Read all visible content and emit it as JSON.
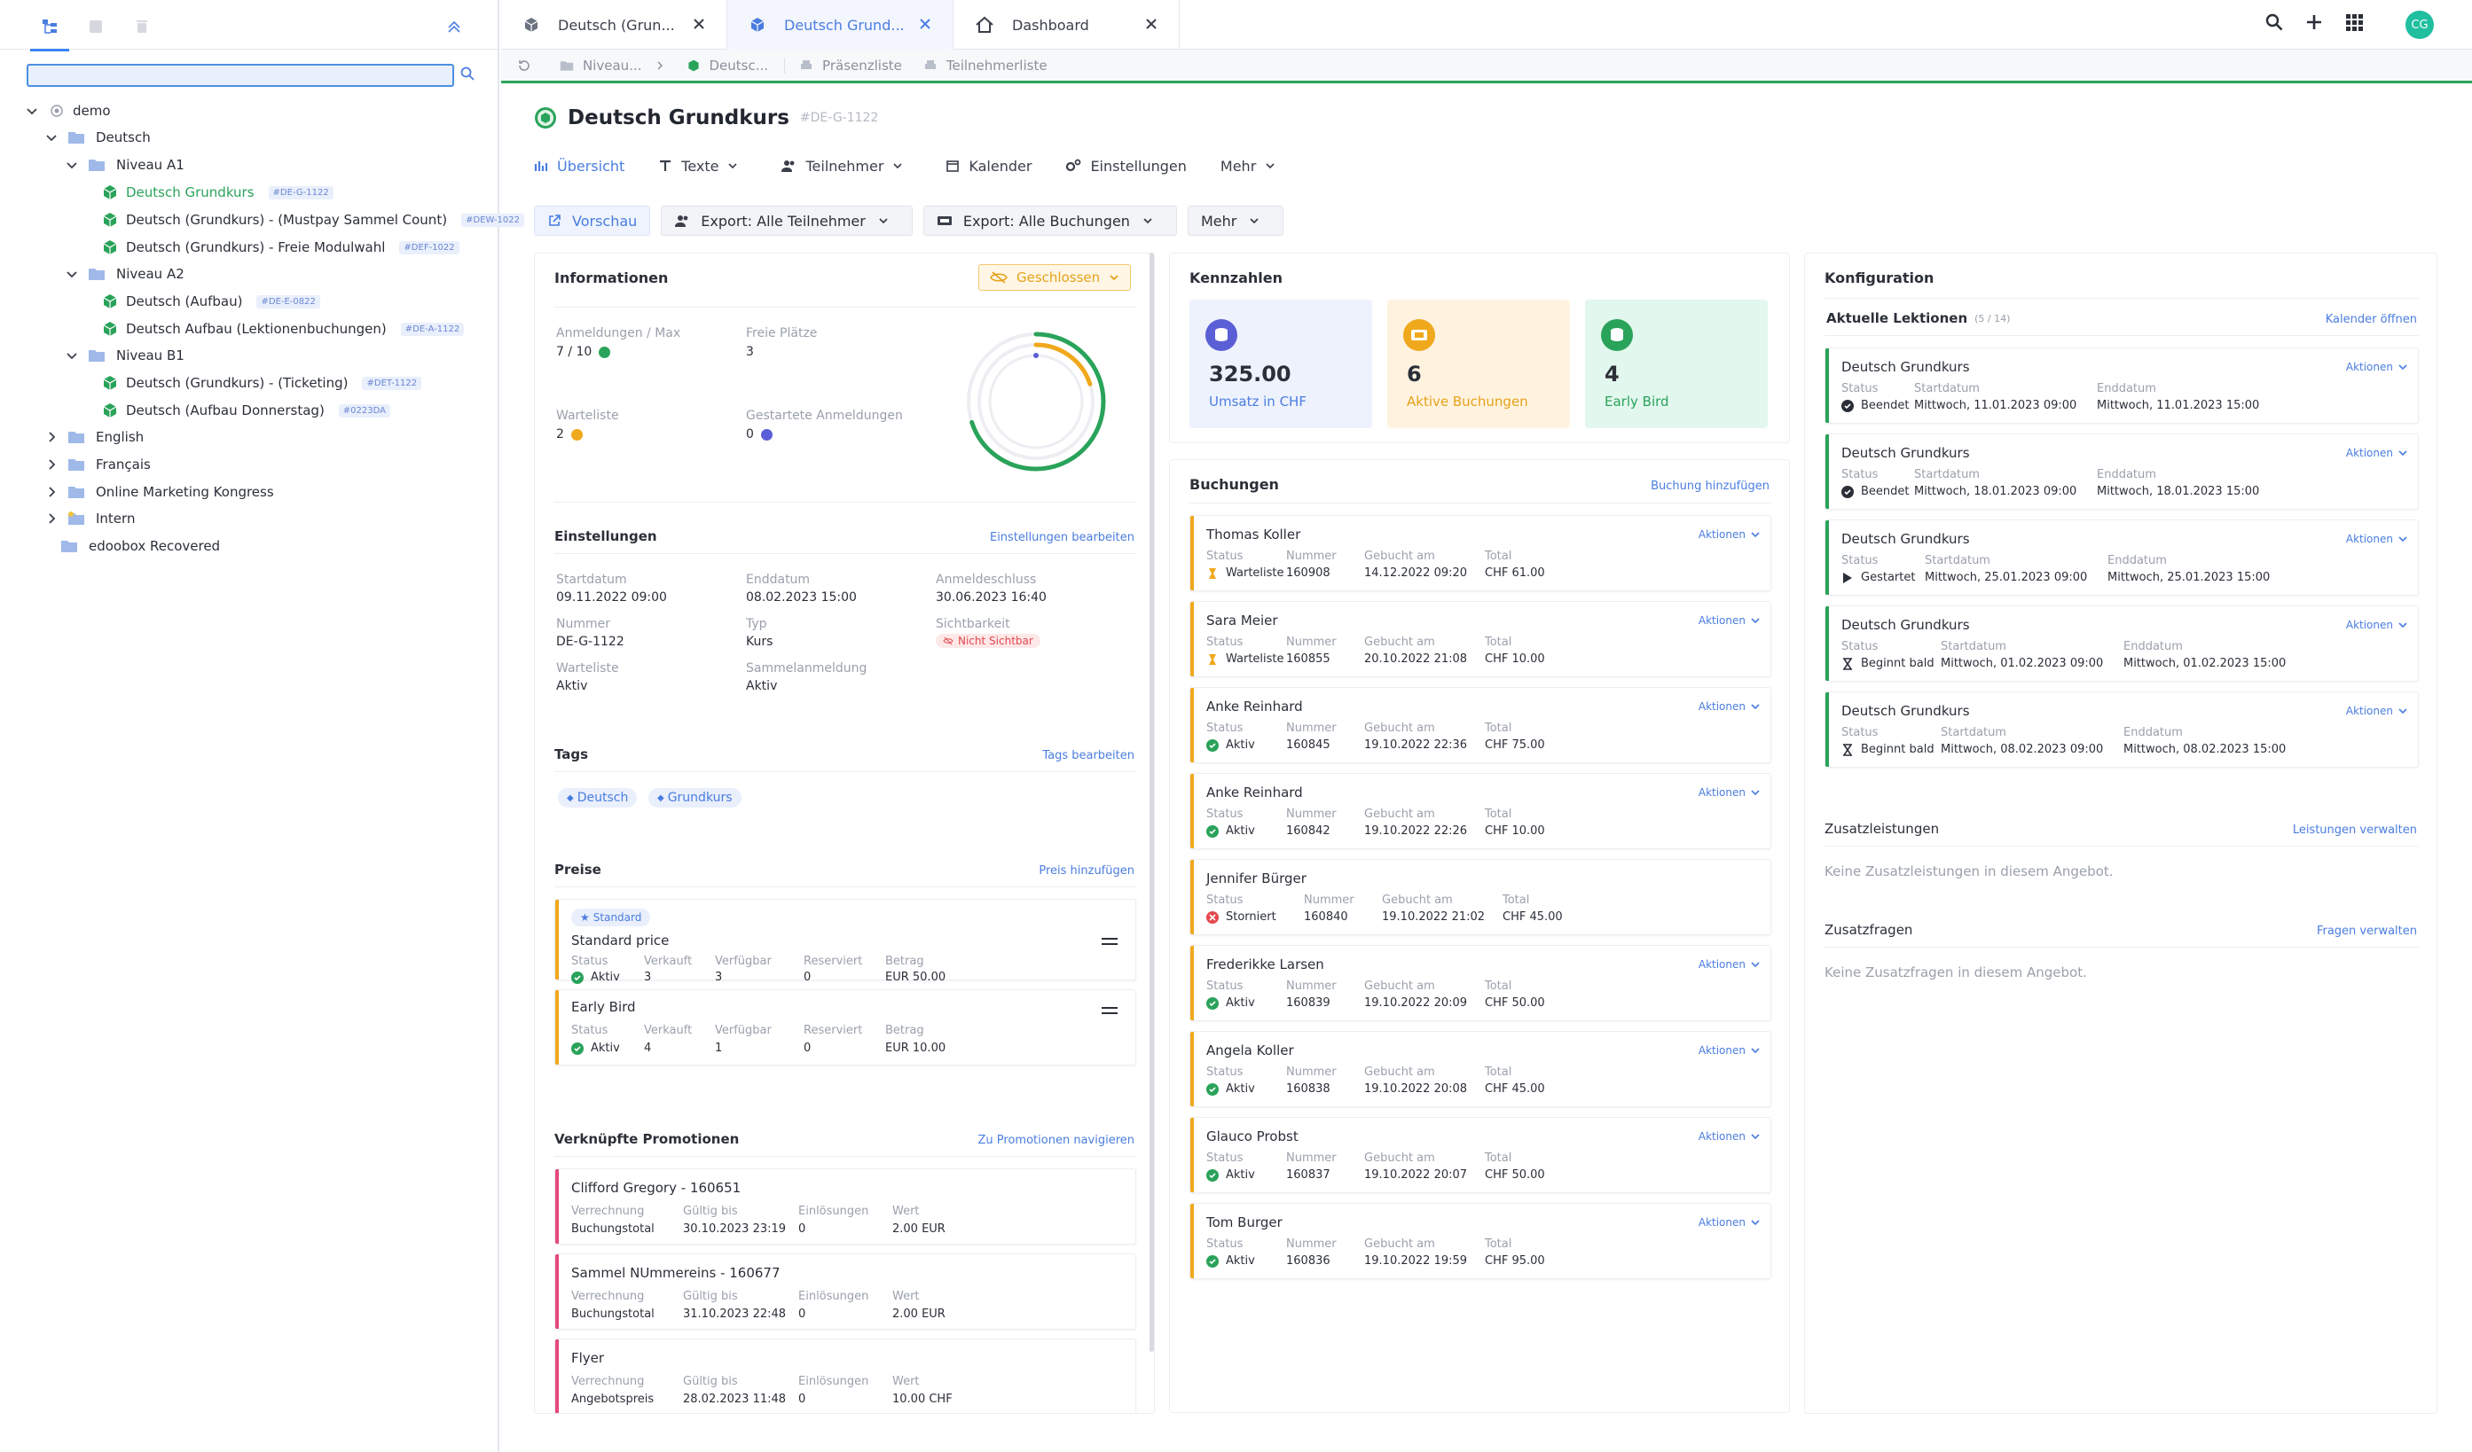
{
  "sidebar": {
    "search": {
      "value": "",
      "placeholder": ""
    },
    "tree": {
      "demo": "demo",
      "deutsch": "Deutsch",
      "niveau_a1": "Niveau A1",
      "a1_items": [
        {
          "label": "Deutsch Grundkurs",
          "tag": "#DE-G-1122"
        },
        {
          "label": "Deutsch (Grundkurs) - (Mustpay Sammel Count)",
          "tag": "#DEW-1022"
        },
        {
          "label": "Deutsch (Grundkurs) - Freie Modulwahl",
          "tag": "#DEF-1022"
        }
      ],
      "niveau_a2": "Niveau A2",
      "a2_items": [
        {
          "label": "Deutsch (Aufbau)",
          "tag": "#DE-E-0822"
        },
        {
          "label": "Deutsch Aufbau (Lektionenbuchungen)",
          "tag": "#DE-A-1122"
        }
      ],
      "niveau_b1": "Niveau B1",
      "b1_items": [
        {
          "label": "Deutsch (Grundkurs) - (Ticketing)",
          "tag": "#DET-1122"
        },
        {
          "label": "Deutsch (Aufbau Donnerstag)",
          "tag": "#0223DA"
        }
      ],
      "english": "English",
      "francais": "Français",
      "online_marketing": "Online Marketing Kongress",
      "intern": "Intern",
      "recovered": "edoobox Recovered"
    }
  },
  "tabs": [
    {
      "label": "Deutsch (Grun..."
    },
    {
      "label": "Deutsch Grund..."
    },
    {
      "label": "Dashboard"
    }
  ],
  "topbar": {
    "avatar": "CG"
  },
  "breadcrumb": {
    "items": [
      "Niveau...",
      "Deutsc..."
    ],
    "print1": "Präsenzliste",
    "print2": "Teilnehmerliste"
  },
  "page": {
    "title": "Deutsch Grundkurs",
    "tag": "#DE-G-1122"
  },
  "nav": {
    "uebersicht": "Übersicht",
    "texte": "Texte",
    "teilnehmer": "Teilnehmer",
    "kalender": "Kalender",
    "einstellungen": "Einstellungen",
    "mehr": "Mehr"
  },
  "actions": {
    "vorschau": "Vorschau",
    "export_teilnehmer": "Export: Alle Teilnehmer",
    "export_buchungen": "Export: Alle Buchungen",
    "mehr": "Mehr"
  },
  "info": {
    "heading": "Informationen",
    "status": "Geschlossen",
    "anmeldungen_label": "Anmeldungen / Max",
    "anmeldungen_value": "7 / 10",
    "freie_label": "Freie Plätze",
    "freie_value": "3",
    "warteliste_label": "Warteliste",
    "warteliste_value": "2",
    "gestartete_label": "Gestartete Anmeldungen",
    "gestartete_value": "0",
    "ring": {
      "registered_fraction": 0.7,
      "waitlist_fraction": 0.2
    }
  },
  "settings": {
    "heading": "Einstellungen",
    "edit": "Einstellungen bearbeiten",
    "startdatum_label": "Startdatum",
    "startdatum": "09.11.2022 09:00",
    "enddatum_label": "Enddatum",
    "enddatum": "08.02.2023 15:00",
    "anmeldeschluss_label": "Anmeldeschluss",
    "anmeldeschluss": "30.06.2023 16:40",
    "nummer_label": "Nummer",
    "nummer": "DE-G-1122",
    "typ_label": "Typ",
    "typ": "Kurs",
    "sicht_label": "Sichtbarkeit",
    "sicht": "Nicht Sichtbar",
    "warteliste_label": "Warteliste",
    "warteliste": "Aktiv",
    "sammel_label": "Sammelanmeldung",
    "sammel": "Aktiv"
  },
  "tags": {
    "heading": "Tags",
    "edit": "Tags bearbeiten",
    "items": [
      "Deutsch",
      "Grundkurs"
    ]
  },
  "preise": {
    "heading": "Preise",
    "add": "Preis hinzufügen",
    "standard_badge": "Standard",
    "labels": {
      "status": "Status",
      "verkauft": "Verkauft",
      "verfuegbar": "Verfügbar",
      "reserviert": "Reserviert",
      "betrag": "Betrag"
    },
    "items": [
      {
        "name": "Standard price",
        "status": "Aktiv",
        "verkauft": "3",
        "verfuegbar": "3",
        "reserviert": "0",
        "betrag": "EUR 50.00"
      },
      {
        "name": "Early Bird",
        "status": "Aktiv",
        "verkauft": "4",
        "verfuegbar": "1",
        "reserviert": "0",
        "betrag": "EUR 10.00"
      }
    ]
  },
  "promotionen": {
    "heading": "Verknüpfte Promotionen",
    "link": "Zu Promotionen navigieren",
    "labels": {
      "verrechnung": "Verrechnung",
      "gueltig": "Gültig bis",
      "einloesungen": "Einlösungen",
      "wert": "Wert"
    },
    "items": [
      {
        "name": "Clifford Gregory - 160651",
        "verrechnung": "Buchungstotal",
        "gueltig": "30.10.2023 23:19",
        "einloesungen": "0",
        "wert": "2.00 EUR"
      },
      {
        "name": "Sammel NUmmereins - 160677",
        "verrechnung": "Buchungstotal",
        "gueltig": "31.10.2023 22:48",
        "einloesungen": "0",
        "wert": "2.00 EUR"
      },
      {
        "name": "Flyer",
        "verrechnung": "Angebotspreis",
        "gueltig": "28.02.2023 11:48",
        "einloesungen": "0",
        "wert": "10.00 CHF"
      }
    ]
  },
  "kennzahlen": {
    "heading": "Kennzahlen",
    "items": [
      {
        "value": "325.00",
        "label": "Umsatz in CHF"
      },
      {
        "value": "6",
        "label": "Aktive Buchungen"
      },
      {
        "value": "4",
        "label": "Early Bird"
      }
    ]
  },
  "buchungen": {
    "heading": "Buchungen",
    "add": "Buchung hinzufügen",
    "aktionen": "Aktionen",
    "labels": {
      "status": "Status",
      "nummer": "Nummer",
      "gebucht": "Gebucht am",
      "total": "Total"
    },
    "items": [
      {
        "name": "Thomas Koller",
        "status": "Warteliste",
        "nummer": "160908",
        "gebucht": "14.12.2022 09:20",
        "total": "CHF 61.00",
        "kind": "wait",
        "aktion": true
      },
      {
        "name": "Sara Meier",
        "status": "Warteliste",
        "nummer": "160855",
        "gebucht": "20.10.2022 21:08",
        "total": "CHF 10.00",
        "kind": "wait",
        "aktion": true
      },
      {
        "name": "Anke Reinhard",
        "status": "Aktiv",
        "nummer": "160845",
        "gebucht": "19.10.2022 22:36",
        "total": "CHF 75.00",
        "kind": "ok",
        "aktion": true
      },
      {
        "name": "Anke Reinhard",
        "status": "Aktiv",
        "nummer": "160842",
        "gebucht": "19.10.2022 22:26",
        "total": "CHF 10.00",
        "kind": "ok",
        "aktion": true
      },
      {
        "name": "Jennifer Bürger",
        "status": "Storniert",
        "nummer": "160840",
        "gebucht": "19.10.2022 21:02",
        "total": "CHF 45.00",
        "kind": "cancel",
        "aktion": false
      },
      {
        "name": "Frederikke Larsen",
        "status": "Aktiv",
        "nummer": "160839",
        "gebucht": "19.10.2022 20:09",
        "total": "CHF 50.00",
        "kind": "ok",
        "aktion": true
      },
      {
        "name": "Angela Koller",
        "status": "Aktiv",
        "nummer": "160838",
        "gebucht": "19.10.2022 20:08",
        "total": "CHF 45.00",
        "kind": "ok",
        "aktion": true
      },
      {
        "name": "Glauco Probst",
        "status": "Aktiv",
        "nummer": "160837",
        "gebucht": "19.10.2022 20:07",
        "total": "CHF 50.00",
        "kind": "ok",
        "aktion": true
      },
      {
        "name": "Tom Burger",
        "status": "Aktiv",
        "nummer": "160836",
        "gebucht": "19.10.2022 19:59",
        "total": "CHF 95.00",
        "kind": "ok",
        "aktion": true
      }
    ]
  },
  "konfiguration": {
    "heading": "Konfiguration",
    "lektionen_heading": "Aktuelle Lektionen",
    "lektionen_count": "(5 / 14)",
    "kalender": "Kalender öffnen",
    "aktionen": "Aktionen",
    "labels": {
      "status": "Status",
      "start": "Startdatum",
      "end": "Enddatum"
    },
    "lektionen": [
      {
        "name": "Deutsch Grundkurs",
        "status": "Beendet",
        "start": "Mittwoch, 11.01.2023 09:00",
        "end": "Mittwoch, 11.01.2023 15:00",
        "kind": "done"
      },
      {
        "name": "Deutsch Grundkurs",
        "status": "Beendet",
        "start": "Mittwoch, 18.01.2023 09:00",
        "end": "Mittwoch, 18.01.2023 15:00",
        "kind": "done"
      },
      {
        "name": "Deutsch Grundkurs",
        "status": "Gestartet",
        "start": "Mittwoch, 25.01.2023 09:00",
        "end": "Mittwoch, 25.01.2023 15:00",
        "kind": "play"
      },
      {
        "name": "Deutsch Grundkurs",
        "status": "Beginnt bald",
        "start": "Mittwoch, 01.02.2023 09:00",
        "end": "Mittwoch, 01.02.2023 15:00",
        "kind": "soon"
      },
      {
        "name": "Deutsch Grundkurs",
        "status": "Beginnt bald",
        "start": "Mittwoch, 08.02.2023 09:00",
        "end": "Mittwoch, 08.02.2023 15:00",
        "kind": "soon"
      }
    ],
    "zusatz_heading": "Zusatzleistungen",
    "zusatz_link": "Leistungen verwalten",
    "zusatz_empty": "Keine Zusatzleistungen in diesem Angebot.",
    "fragen_heading": "Zusatzfragen",
    "fragen_link": "Fragen verwalten",
    "fragen_empty": "Keine Zusatzfragen in diesem Angebot."
  },
  "colors": {
    "accent": "#4a7de0",
    "green": "#2aa35a",
    "warning": "#f0a81c",
    "danger": "#e5484d",
    "purple": "#5b5fd6"
  }
}
